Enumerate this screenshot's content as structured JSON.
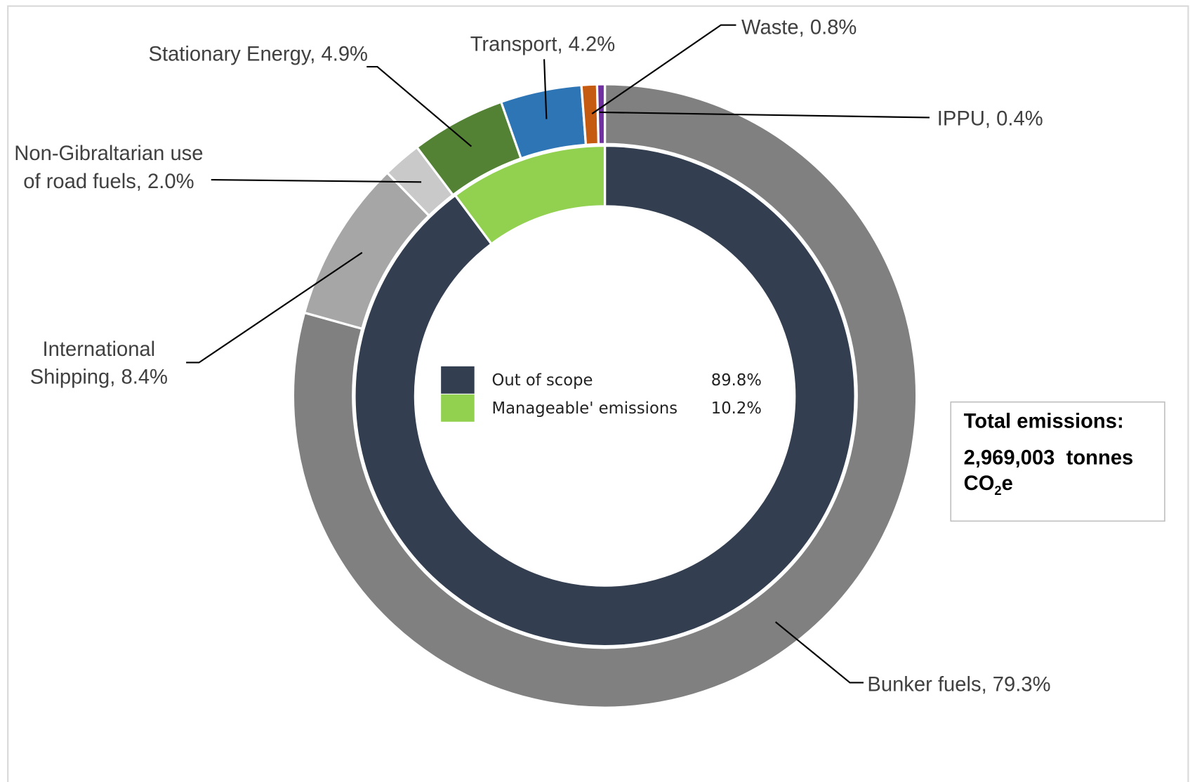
{
  "chart_data": {
    "type": "donut",
    "outer": {
      "categories": [
        "Bunker fuels,",
        "International Shipping,",
        "Non-Gibraltarian use of road fuels,",
        "Stationary Energy,",
        "Transport,",
        "Waste,",
        "IPPU,"
      ],
      "values": [
        79.3,
        8.4,
        2.0,
        4.9,
        4.2,
        0.8,
        0.4
      ],
      "value_labels": [
        "79.3%",
        "8.4%",
        "2.0%",
        "4.9%",
        "4.2%",
        "0.8%",
        "0.4%"
      ],
      "colors": [
        "#808080",
        "#a6a6a6",
        "#c9c9c9",
        "#548235",
        "#2e75b6",
        "#c55a11",
        "#7030a0"
      ]
    },
    "inner": {
      "categories": [
        "Out of scope",
        "Manageable' emissions"
      ],
      "values": [
        89.8,
        10.2
      ],
      "value_labels": [
        "89.8%",
        "10.2%"
      ],
      "colors": [
        "#333f50",
        "#92d050"
      ]
    },
    "annotation": {
      "title": "Total emissions:",
      "value": "2,969,003",
      "unit": "tonnes",
      "unit_main": "CO",
      "unit_sub": "2",
      "unit_end": "e"
    }
  }
}
